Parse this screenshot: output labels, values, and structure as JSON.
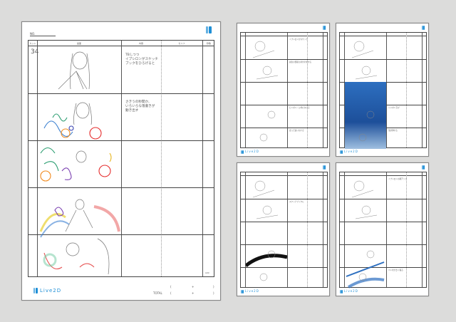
{
  "main_sheet": {
    "no_label": "NO.",
    "headers": [
      "カット",
      "画面",
      "内容",
      "セリフ",
      "秒数"
    ],
    "cut_number": "34",
    "notes": [
      "TBしつつ\nイプシロンがスケッチ\nブックをひろげると",
      "さきうの秒間か、\nいろいろな落書きが\n動き出す"
    ],
    "page_mark": "4/10",
    "brand": "Live2D",
    "total_label": "TOTAL",
    "time_row1": [
      "(",
      "+",
      ")"
    ],
    "time_row2": [
      "(",
      "+",
      ")"
    ]
  },
  "thumb_sheets": [
    {
      "notes": [
        "イプシロンがスケッチ",
        "先生の部屋の片付けをする",
        "ピンポン！と呼びかける",
        "走って追いかける"
      ]
    },
    {
      "notes": [
        "",
        "",
        "シャボン玉が",
        "泡が弾ける"
      ]
    },
    {
      "notes": [
        "",
        "スケッチブックに",
        "",
        ""
      ]
    },
    {
      "notes": [
        "イプシロンの顔アップ",
        "",
        "",
        "ペンを大きく振る"
      ]
    }
  ],
  "colors": {
    "brand": "#1f8fd6",
    "ocean": "#2d6fc0",
    "background": "#dcdcdb"
  },
  "icons": [
    "live2d-logo-icon"
  ]
}
